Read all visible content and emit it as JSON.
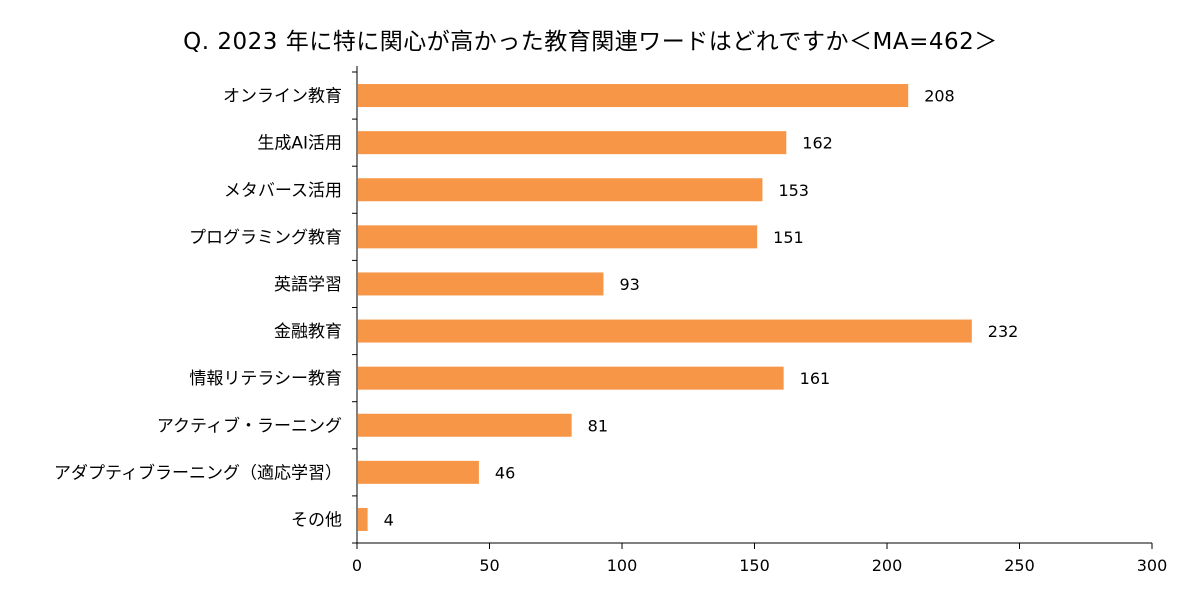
{
  "chart_data": {
    "type": "bar",
    "orientation": "horizontal",
    "title": "Q. 2023 年に特に関心が高かった教育関連ワードはどれですか＜MA=462＞",
    "categories": [
      "オンライン教育",
      "生成AI活用",
      "メタバース活用",
      "プログラミング教育",
      "英語学習",
      "金融教育",
      "情報リテラシー教育",
      "アクティブ・ラーニング",
      "アダプティブラーニング（適応学習）",
      "その他"
    ],
    "values": [
      208,
      162,
      153,
      151,
      93,
      232,
      161,
      81,
      46,
      4
    ],
    "value_labels": [
      "208",
      "162",
      "153",
      "151",
      "93",
      "232",
      "161",
      "81",
      "46",
      "4"
    ],
    "xlim": [
      0,
      300
    ],
    "xticks": [
      0,
      50,
      100,
      150,
      200,
      250,
      300
    ],
    "xtick_labels": [
      "0",
      "50",
      "100",
      "150",
      "200",
      "250",
      "300"
    ],
    "xlabel": "",
    "ylabel": "",
    "grid": false,
    "legend": "none",
    "bar_color": "#F79646"
  }
}
